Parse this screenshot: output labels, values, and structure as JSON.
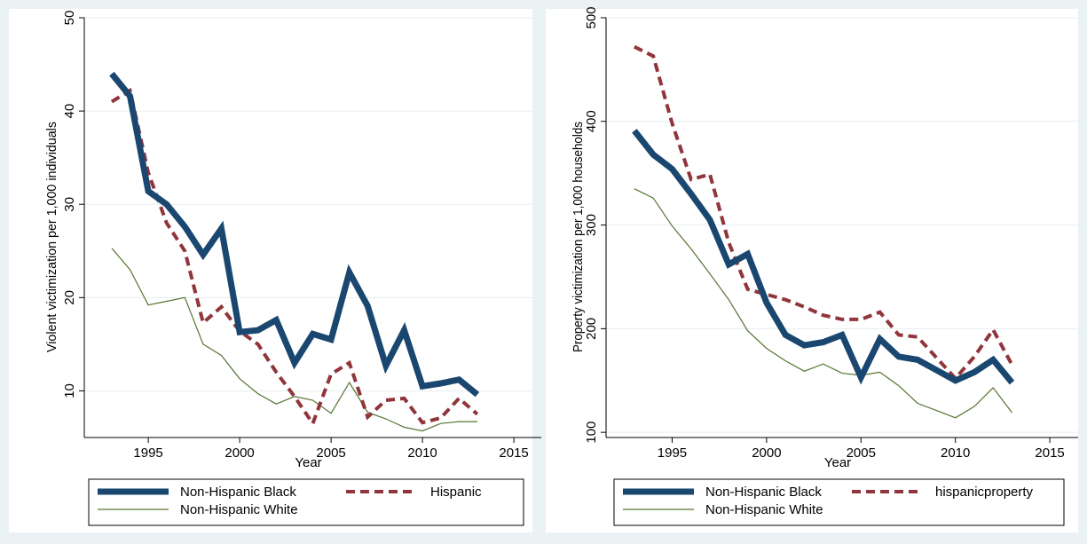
{
  "chart_data": [
    {
      "type": "line",
      "xlabel": "Year",
      "ylabel": "Violent victimization per 1,000 individuals",
      "xlim": [
        1991.5,
        2016.5
      ],
      "ylim": [
        5,
        50
      ],
      "xticks": [
        1995,
        2000,
        2005,
        2010,
        2015
      ],
      "yticks": [
        10,
        20,
        30,
        40,
        50
      ],
      "grid": "horizontal",
      "legend": {
        "placement": "bottom",
        "columns": 2
      },
      "x": [
        1993,
        1994,
        1995,
        1996,
        1997,
        1998,
        1999,
        2000,
        2001,
        2002,
        2003,
        2004,
        2005,
        2006,
        2007,
        2008,
        2009,
        2010,
        2011,
        2012,
        2013
      ],
      "series": [
        {
          "name": "Non-Hispanic Black",
          "color": "#1a476f",
          "style": "thick-solid",
          "values": [
            44,
            41.6,
            31.4,
            30,
            27.6,
            24.6,
            27.4,
            16.3,
            16.5,
            17.6,
            13,
            16.1,
            15.5,
            22.7,
            19.1,
            12.7,
            16.5,
            10.5,
            10.8,
            11.2,
            9.6
          ]
        },
        {
          "name": "Hispanic",
          "color": "#90353b",
          "style": "dashed",
          "values": [
            41,
            42.2,
            33.4,
            28,
            25,
            17.3,
            19,
            16.4,
            15,
            12,
            9.4,
            6.5,
            11.8,
            13,
            7.2,
            9,
            9.2,
            6.6,
            7.1,
            9.2,
            7.5
          ]
        },
        {
          "name": "Non-Hispanic White",
          "color": "#55752f",
          "style": "thin-solid",
          "values": [
            25.3,
            23,
            19.2,
            19.6,
            20,
            15,
            13.8,
            11.3,
            9.7,
            8.6,
            9.4,
            9,
            7.6,
            10.9,
            7.7,
            7,
            6.1,
            5.7,
            6.5,
            6.7,
            6.7
          ]
        }
      ]
    },
    {
      "type": "line",
      "xlabel": "Year",
      "ylabel": "Property victimization per 1,000 households",
      "xlim": [
        1991.5,
        2016.5
      ],
      "ylim": [
        95,
        500
      ],
      "xticks": [
        1995,
        2000,
        2005,
        2010,
        2015
      ],
      "yticks": [
        100,
        200,
        300,
        400,
        500
      ],
      "grid": "horizontal",
      "legend": {
        "placement": "bottom",
        "columns": 2
      },
      "x": [
        1993,
        1994,
        1995,
        1996,
        1997,
        1998,
        1999,
        2000,
        2001,
        2002,
        2003,
        2004,
        2005,
        2006,
        2007,
        2008,
        2009,
        2010,
        2011,
        2012,
        2013
      ],
      "series": [
        {
          "name": "Non-Hispanic Black",
          "color": "#1a476f",
          "style": "thick-solid",
          "values": [
            391,
            368,
            354,
            330,
            305,
            262,
            272,
            225,
            194,
            184,
            187,
            194,
            153,
            190,
            173,
            170,
            160,
            150,
            158,
            170,
            148
          ]
        },
        {
          "name": "hispanicproperty",
          "color": "#90353b",
          "style": "dashed",
          "values": [
            472,
            463,
            398,
            344,
            349,
            283,
            238,
            233,
            228,
            221,
            213,
            209,
            209,
            216,
            194,
            192,
            172,
            152,
            173,
            199,
            165
          ]
        },
        {
          "name": "Non-Hispanic White",
          "color": "#55752f",
          "style": "thin-solid",
          "values": [
            335,
            326,
            299,
            277,
            253,
            228,
            198,
            181,
            169,
            159,
            166,
            157,
            155,
            158,
            145,
            128,
            121,
            114,
            125,
            143,
            119
          ]
        }
      ]
    }
  ]
}
